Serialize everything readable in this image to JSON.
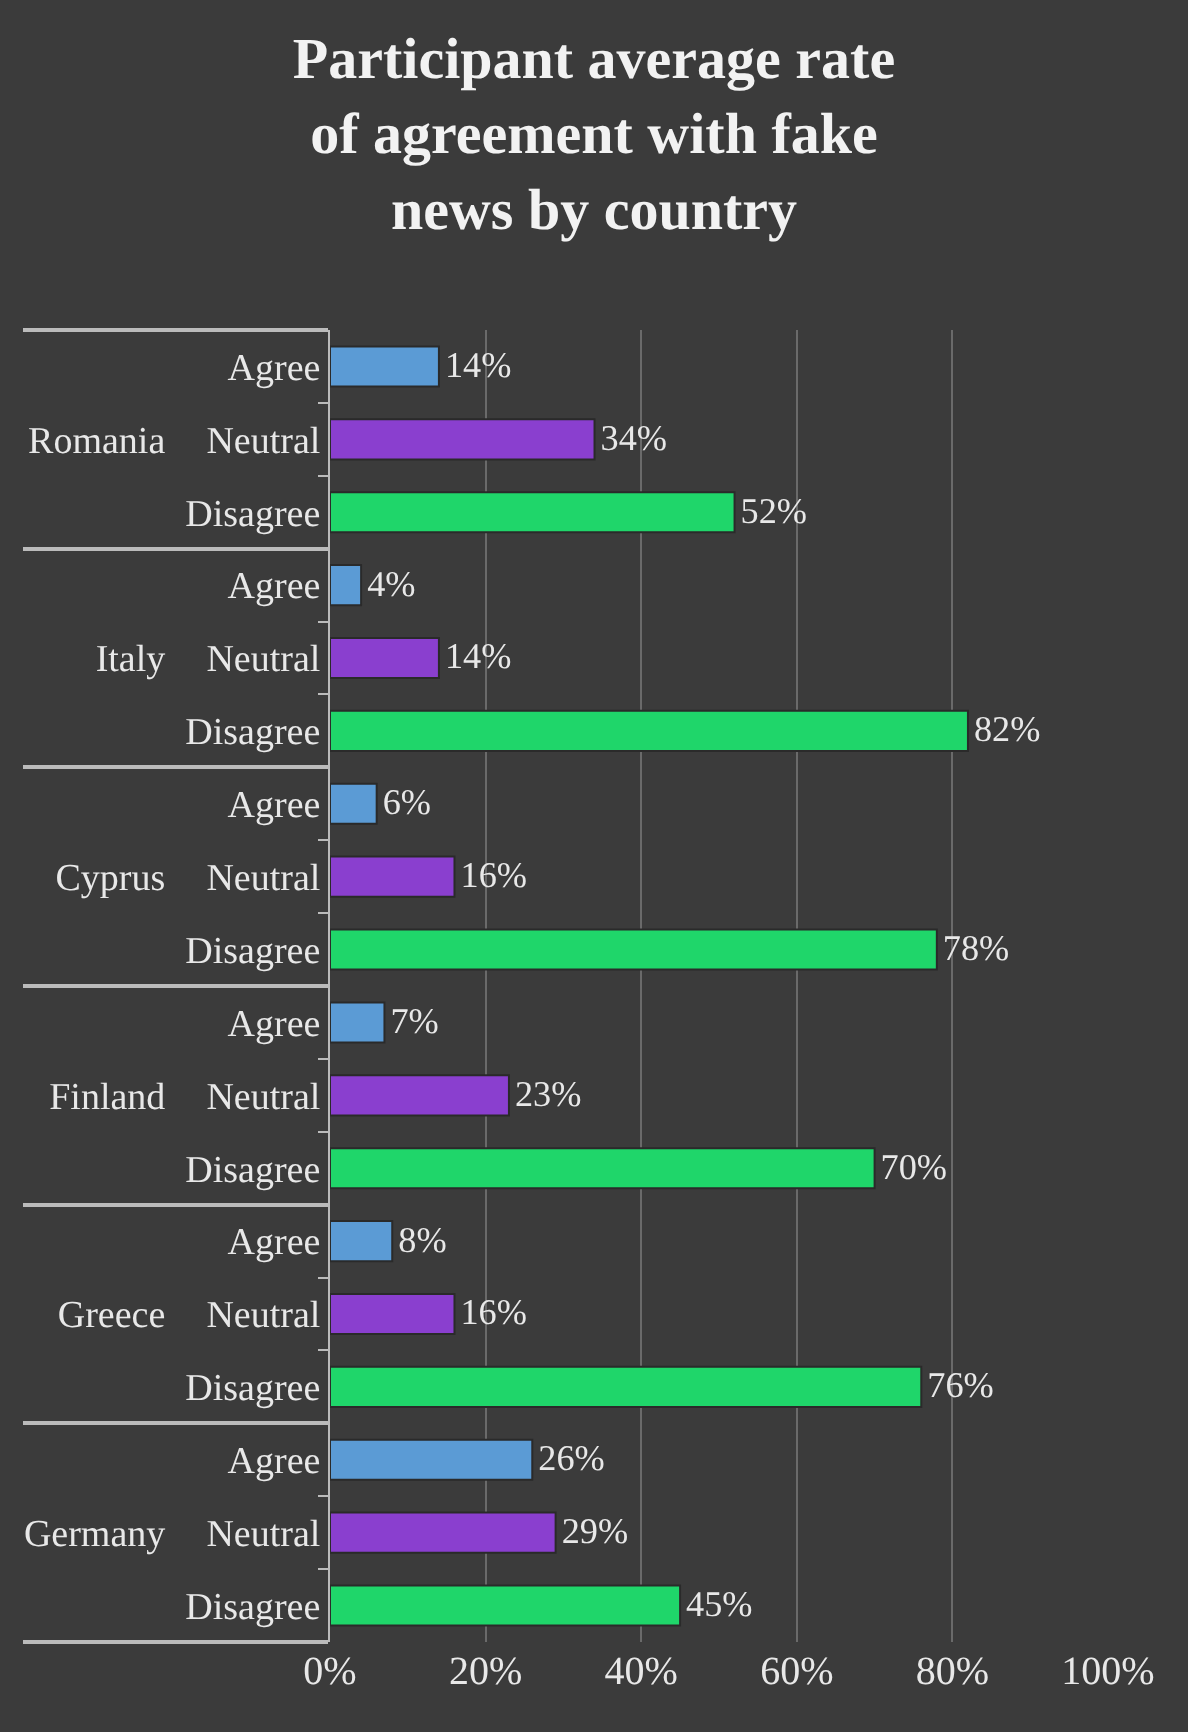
{
  "chart_data": {
    "type": "bar",
    "orientation": "horizontal",
    "title": "Participant average rate of agreement with fake news by country",
    "categories": [
      "Romania",
      "Italy",
      "Cyprus",
      "Finland",
      "Greece",
      "Germany"
    ],
    "series": [
      {
        "name": "Agree",
        "color": "#5b9bd5",
        "values": [
          14,
          4,
          6,
          7,
          8,
          26
        ],
        "value_labels": [
          "14%",
          "4%",
          "6%",
          "7%",
          "8%",
          "26%"
        ]
      },
      {
        "name": "Neutral",
        "color": "#8a3fcf",
        "values": [
          34,
          14,
          16,
          23,
          16,
          29
        ],
        "value_labels": [
          "34%",
          "14%",
          "16%",
          "23%",
          "16%",
          "29%"
        ]
      },
      {
        "name": "Disagree",
        "color": "#1fd66a",
        "values": [
          52,
          82,
          78,
          70,
          76,
          45
        ],
        "value_labels": [
          "52%",
          "82%",
          "78%",
          "70%",
          "76%",
          "45%"
        ]
      }
    ],
    "xlim": [
      0,
      100
    ],
    "xticks": [
      {
        "value": 0,
        "label": "0%"
      },
      {
        "value": 20,
        "label": "20%"
      },
      {
        "value": 40,
        "label": "40%"
      },
      {
        "value": 60,
        "label": "60%"
      },
      {
        "value": 80,
        "label": "80%"
      },
      {
        "value": 100,
        "label": "100%"
      }
    ],
    "grid": "x",
    "legend": false
  }
}
